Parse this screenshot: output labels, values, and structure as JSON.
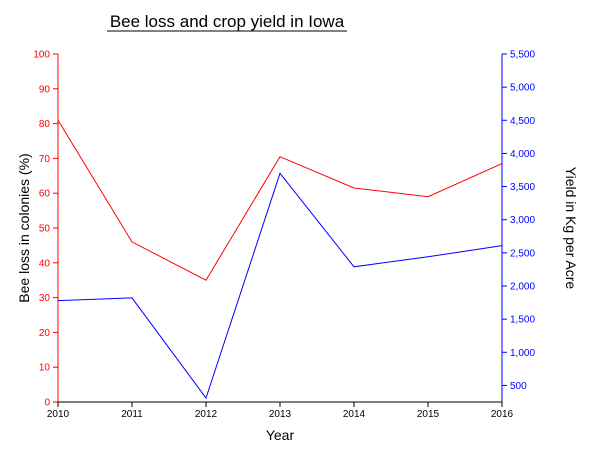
{
  "chart_data": {
    "type": "line",
    "title": "Bee loss and crop yield in Iowa",
    "xlabel": "Year",
    "ylabel_left": "Bee loss in colonies (%)",
    "ylabel_right": "Yield in Kg per Acre",
    "x": [
      "2010",
      "2011",
      "2012",
      "2013",
      "2014",
      "2015",
      "2016"
    ],
    "y_left": {
      "lim": [
        0,
        100
      ],
      "ticks": [
        "0",
        "10",
        "20",
        "30",
        "40",
        "50",
        "60",
        "70",
        "80",
        "90",
        "100"
      ],
      "color": "#ff0000"
    },
    "y_right": {
      "lim": [
        250,
        5500
      ],
      "ticks": [
        "500",
        "1,000",
        "1,500",
        "2,000",
        "2,500",
        "3,000",
        "3,500",
        "4,000",
        "4,500",
        "5,000",
        "5,500"
      ],
      "color": "#0000ff"
    },
    "series": [
      {
        "axis": "left",
        "color": "#ff0000",
        "values": [
          81,
          46,
          35,
          70.5,
          61.5,
          59,
          68.5
        ]
      },
      {
        "axis": "right",
        "color": "#0000ff",
        "values": [
          1780,
          1820,
          310,
          3700,
          2290,
          2440,
          2610
        ]
      }
    ],
    "grid": false,
    "legend": "none"
  }
}
